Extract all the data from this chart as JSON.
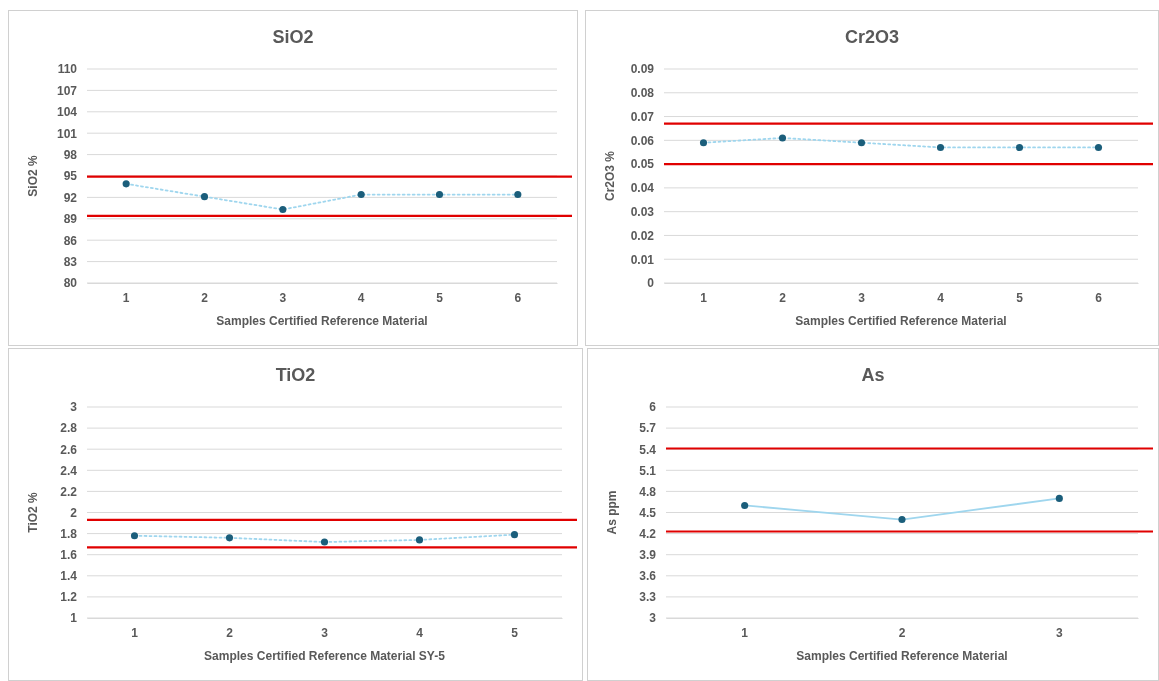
{
  "chart_data": [
    {
      "type": "line",
      "title": "SiO2",
      "xlabel": "Samples Certified Reference Material",
      "ylabel": "SiO2 %",
      "categories": [
        "1",
        "2",
        "3",
        "4",
        "5",
        "6"
      ],
      "series": [
        {
          "type": "line",
          "color": "#9fd6ee",
          "marker": "none",
          "values": [
            93.9,
            92.1,
            90.3,
            92.4,
            92.4,
            92.4
          ]
        },
        {
          "type": "scatter",
          "color": "#1b5e7b",
          "marker": "circle",
          "values": [
            93.9,
            92.1,
            90.3,
            92.4,
            92.4,
            92.4
          ]
        }
      ],
      "ylim": [
        80,
        110
      ],
      "yticks": [
        80,
        83,
        86,
        89,
        92,
        95,
        98,
        101,
        104,
        107,
        110
      ],
      "grid": "y",
      "line_style": "dotted",
      "ref_lines": [
        {
          "axis": "y",
          "value": 94.9,
          "color": "#e00000"
        },
        {
          "axis": "y",
          "value": 89.4,
          "color": "#e00000"
        }
      ]
    },
    {
      "type": "line",
      "title": "Cr2O3",
      "xlabel": "Samples Certified Reference Material",
      "ylabel": "Cr2O3 %",
      "categories": [
        "1",
        "2",
        "3",
        "4",
        "5",
        "6"
      ],
      "series": [
        {
          "type": "line",
          "color": "#9fd6ee",
          "marker": "none",
          "values": [
            0.059,
            0.061,
            0.059,
            0.057,
            0.057,
            0.057
          ]
        },
        {
          "type": "scatter",
          "color": "#1b5e7b",
          "marker": "circle",
          "values": [
            0.059,
            0.061,
            0.059,
            0.057,
            0.057,
            0.057
          ]
        }
      ],
      "ylim": [
        0,
        0.09
      ],
      "yticks": [
        0,
        0.01,
        0.02,
        0.03,
        0.04,
        0.05,
        0.06,
        0.07,
        0.08,
        0.09
      ],
      "grid": "y",
      "line_style": "dotted",
      "ref_lines": [
        {
          "axis": "y",
          "value": 0.067,
          "color": "#e00000"
        },
        {
          "axis": "y",
          "value": 0.05,
          "color": "#e00000"
        }
      ]
    },
    {
      "type": "line",
      "title": "TiO2",
      "xlabel": "Samples Certified Reference Material SY-5",
      "ylabel": "TiO2 %",
      "categories": [
        "1",
        "2",
        "3",
        "4",
        "5"
      ],
      "series": [
        {
          "type": "line",
          "color": "#9fd6ee",
          "marker": "none",
          "values": [
            1.78,
            1.76,
            1.72,
            1.74,
            1.79
          ]
        },
        {
          "type": "scatter",
          "color": "#1b5e7b",
          "marker": "circle",
          "values": [
            1.78,
            1.76,
            1.72,
            1.74,
            1.79
          ]
        }
      ],
      "ylim": [
        1,
        3
      ],
      "yticks": [
        1,
        1.2,
        1.4,
        1.6,
        1.8,
        2,
        2.2,
        2.4,
        2.6,
        2.8,
        3
      ],
      "grid": "y",
      "line_style": "dotted",
      "ref_lines": [
        {
          "axis": "y",
          "value": 1.93,
          "color": "#e00000"
        },
        {
          "axis": "y",
          "value": 1.67,
          "color": "#e00000"
        }
      ]
    },
    {
      "type": "line",
      "title": "As",
      "xlabel": "Samples Certified Reference Material",
      "ylabel": "As ppm",
      "categories": [
        "1",
        "2",
        "3"
      ],
      "series": [
        {
          "type": "line",
          "color": "#9fd6ee",
          "marker": "none",
          "values": [
            4.6,
            4.4,
            4.7
          ]
        },
        {
          "type": "scatter",
          "color": "#1b5e7b",
          "marker": "circle",
          "values": [
            4.6,
            4.4,
            4.7
          ]
        }
      ],
      "ylim": [
        3,
        6
      ],
      "yticks": [
        3,
        3.3,
        3.6,
        3.9,
        4.2,
        4.5,
        4.8,
        5.1,
        5.4,
        5.7,
        6
      ],
      "grid": "y",
      "line_style": "solid",
      "ref_lines": [
        {
          "axis": "y",
          "value": 5.41,
          "color": "#e00000"
        },
        {
          "axis": "y",
          "value": 4.23,
          "color": "#e00000"
        }
      ]
    }
  ]
}
